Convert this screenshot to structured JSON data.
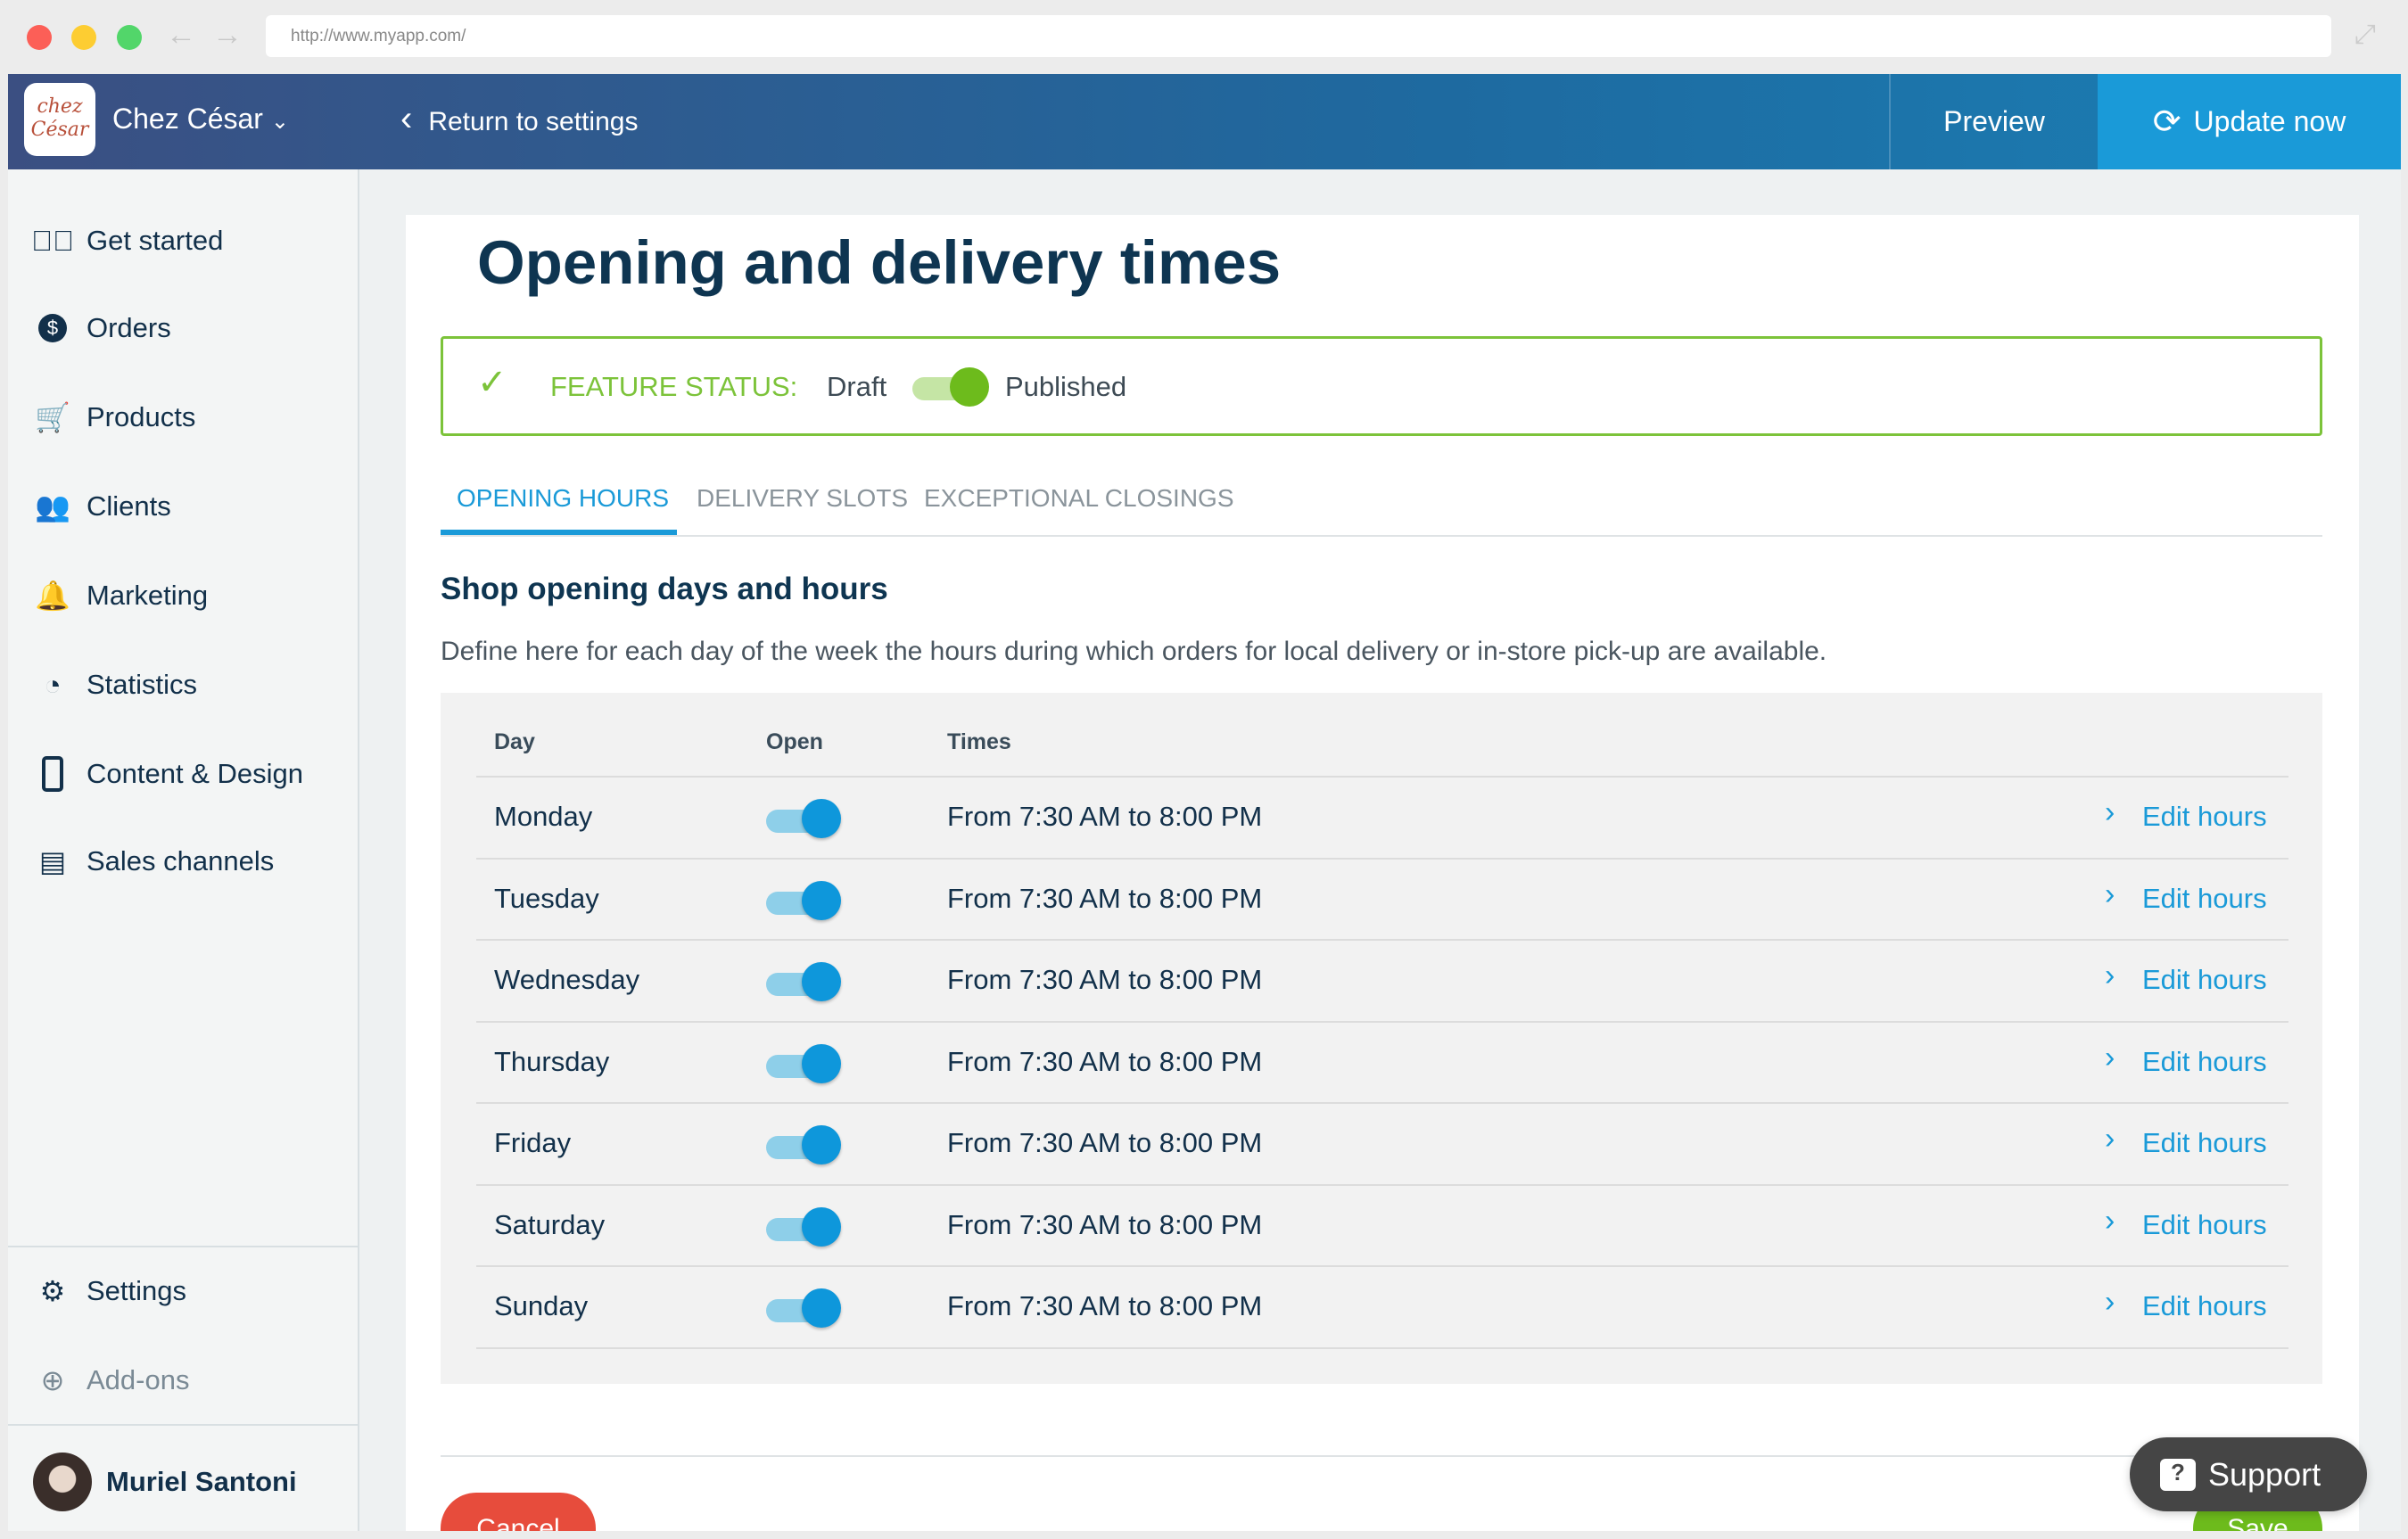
{
  "browser": {
    "url": "http://www.myapp.com/"
  },
  "header": {
    "logo_text": "chez César",
    "shop_name": "Chez César",
    "return_label": "Return to settings",
    "preview_label": "Preview",
    "update_label": "Update now"
  },
  "sidebar": {
    "items": [
      {
        "label": "Get started",
        "icon": "check-circle-icon"
      },
      {
        "label": "Orders",
        "icon": "dollar-icon"
      },
      {
        "label": "Products",
        "icon": "cart-icon"
      },
      {
        "label": "Clients",
        "icon": "users-icon"
      },
      {
        "label": "Marketing",
        "icon": "bell-icon"
      },
      {
        "label": "Statistics",
        "icon": "pie-chart-icon"
      },
      {
        "label": "Content & Design",
        "icon": "phone-icon"
      },
      {
        "label": "Sales channels",
        "icon": "store-icon"
      }
    ],
    "settings_label": "Settings",
    "addons_label": "Add-ons",
    "user_name": "Muriel Santoni"
  },
  "page": {
    "title": "Opening and delivery times",
    "feature_status_label": "FEATURE STATUS:",
    "draft_label": "Draft",
    "published_label": "Published",
    "status_published": true,
    "tabs": [
      {
        "label": "OPENING HOURS",
        "active": true
      },
      {
        "label": "DELIVERY SLOTS",
        "active": false
      },
      {
        "label": "EXCEPTIONAL CLOSINGS",
        "active": false
      }
    ],
    "section_title": "Shop opening days and hours",
    "description": "Define here for each day of the week the hours during which orders for local delivery or in-store pick-up are available.",
    "table": {
      "headers": {
        "day": "Day",
        "open": "Open",
        "times": "Times"
      },
      "edit_label": "Edit hours",
      "rows": [
        {
          "day": "Monday",
          "open": true,
          "times": "From 7:30 AM to 8:00 PM"
        },
        {
          "day": "Tuesday",
          "open": true,
          "times": "From 7:30 AM to 8:00 PM"
        },
        {
          "day": "Wednesday",
          "open": true,
          "times": "From 7:30 AM to 8:00 PM"
        },
        {
          "day": "Thursday",
          "open": true,
          "times": "From 7:30 AM to 8:00 PM"
        },
        {
          "day": "Friday",
          "open": true,
          "times": "From 7:30 AM to 8:00 PM"
        },
        {
          "day": "Saturday",
          "open": true,
          "times": "From 7:30 AM to 8:00 PM"
        },
        {
          "day": "Sunday",
          "open": true,
          "times": "From 7:30 AM to 8:00 PM"
        }
      ]
    },
    "cancel_label": "Cancel",
    "save_label": "Save"
  },
  "support": {
    "label": "Support"
  },
  "colors": {
    "accent": "#1a9ad8",
    "success": "#7cc33a",
    "danger": "#e74c3c",
    "navy": "#0e3551"
  }
}
